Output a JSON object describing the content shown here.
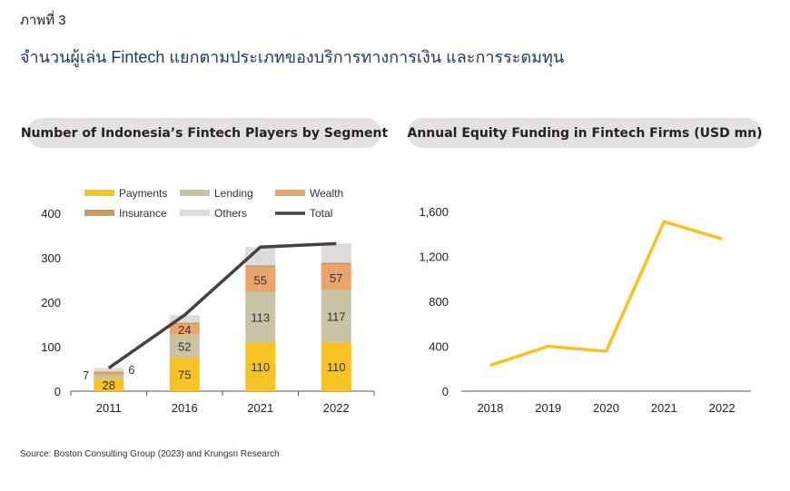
{
  "figure_label": "ภาพที่ 3",
  "figure_title": "จำนวนผู้เล่น Fintech แยกตามประเภทของบริการทางการเงิน และการระดมทุน",
  "source": "Source: Boston Consulting Group (2023) and Krungsri Research",
  "colors": {
    "payments": "#f7c324",
    "lending": "#c9c3a5",
    "wealth": "#eba56a",
    "insurance": "#c99a5c",
    "others": "#dcdcdc",
    "total": "#4a3f3f",
    "funding_line": "#f7c324",
    "axis": "#555555"
  },
  "chart_data": [
    {
      "type": "bar",
      "stacked": true,
      "title": "Number of Indonesia’s Fintech Players by Segment",
      "categories": [
        "2011",
        "2016",
        "2021",
        "2022"
      ],
      "ylim": [
        0,
        400
      ],
      "yticks": [
        0,
        100,
        200,
        300,
        400
      ],
      "legend_position": "top",
      "series": [
        {
          "name": "Payments",
          "key": "payments",
          "values": [
            28,
            75,
            110,
            110
          ],
          "labels": [
            "28",
            "75",
            "110",
            "110"
          ]
        },
        {
          "name": "Lending",
          "key": "lending",
          "values": [
            7,
            52,
            113,
            117
          ],
          "labels": [
            "7",
            "52",
            "113",
            "117"
          ]
        },
        {
          "name": "Wealth",
          "key": "wealth",
          "values": [
            6,
            24,
            55,
            57
          ],
          "labels": [
            "6",
            "24",
            "55",
            "57"
          ]
        },
        {
          "name": "Insurance",
          "key": "insurance",
          "values": [
            3,
            3,
            5,
            5
          ],
          "labels": [
            "",
            "",
            "",
            ""
          ]
        },
        {
          "name": "Others",
          "key": "others",
          "values": [
            8,
            17,
            41,
            43
          ],
          "labels": [
            "",
            "",
            "",
            ""
          ]
        }
      ],
      "line_series": {
        "name": "Total",
        "key": "total",
        "values": [
          52,
          171,
          324,
          332
        ]
      }
    },
    {
      "type": "line",
      "title": "Annual Equity Funding in Fintech Firms (USD mn)",
      "x": [
        "2018",
        "2019",
        "2020",
        "2021",
        "2022"
      ],
      "ylim": [
        0,
        1600
      ],
      "yticks": [
        0,
        400,
        800,
        1200,
        1600
      ],
      "ytick_labels": [
        "0",
        "400",
        "800",
        "1,200",
        "1,600"
      ],
      "series": [
        {
          "values": [
            230,
            400,
            355,
            1510,
            1355
          ]
        }
      ]
    }
  ]
}
